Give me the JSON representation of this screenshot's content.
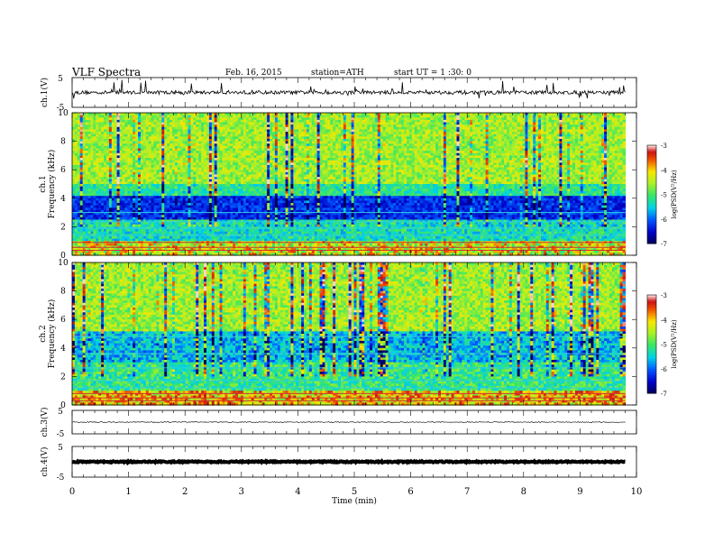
{
  "header": {
    "title": "VLF  Spectra",
    "date": "Feb. 16, 2015",
    "station": "station=ATH",
    "start": "start  UT  =    1 :30: 0"
  },
  "chart_data": [
    {
      "type": "line",
      "name_label": "ch.1(V)",
      "ylabel": "ch.1(V)",
      "ylim": [
        -5,
        5
      ],
      "yticks": [
        "5",
        "-5"
      ],
      "description_values": {
        "baseline": 0,
        "spike_range": [
          -2,
          4
        ]
      }
    },
    {
      "type": "heatmap",
      "ylabel_channel": "ch.1",
      "ylabel": "Frequency  (kHz)",
      "ylim": [
        0,
        10
      ],
      "yticks": [
        "0",
        "2",
        "4",
        "6",
        "8",
        "10"
      ],
      "xlim": [
        0,
        9.8
      ],
      "colorbar": {
        "label": "log(PSD(V²/Hz)",
        "ticks": [
          "-3",
          "-4",
          "-5",
          "-6",
          "-7"
        ],
        "range": [
          -7,
          -3
        ]
      }
    },
    {
      "type": "heatmap",
      "ylabel_channel": "ch.2",
      "ylabel": "Frequency  (kHz)",
      "ylim": [
        0,
        10
      ],
      "yticks": [
        "0",
        "2",
        "4",
        "6",
        "8",
        "10"
      ],
      "xlim": [
        0,
        9.8
      ],
      "colorbar": {
        "label": "log(PSD(V²/Hz)",
        "ticks": [
          "-3",
          "-4",
          "-5",
          "-6",
          "-7"
        ],
        "range": [
          -7,
          -3
        ]
      }
    },
    {
      "type": "line",
      "ylabel": "ch.3(V)",
      "ylim": [
        -5,
        5
      ],
      "yticks": [
        "5",
        "-5"
      ],
      "description_values": {
        "baseline": 0
      }
    },
    {
      "type": "line",
      "ylabel": "ch.4(V)",
      "ylim": [
        -5,
        5
      ],
      "yticks": [
        "5",
        "-5"
      ],
      "description_values": {
        "baseline": 0
      }
    }
  ],
  "xaxis": {
    "label": "Time  (min)",
    "range": [
      0,
      10
    ],
    "ticks": [
      "0",
      "1",
      "2",
      "3",
      "4",
      "5",
      "6",
      "7",
      "8",
      "9",
      "10"
    ]
  }
}
